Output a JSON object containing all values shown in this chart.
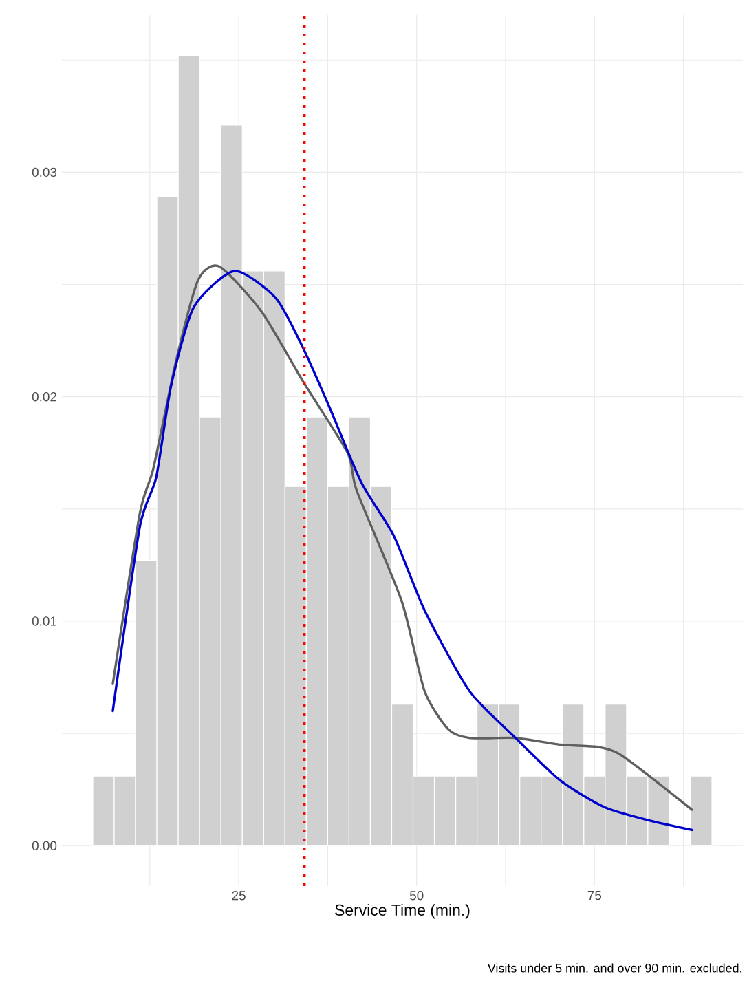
{
  "chart_data": {
    "type": "histogram",
    "xlabel": "Service Time (min.)",
    "annotations": [
      "Visits under 5 min. and over 90 min. excluded."
    ],
    "xlim": [
      0.15,
      95.85
    ],
    "ylim": [
      -0.0018,
      0.037
    ],
    "xticks": [
      {
        "value": 12.5,
        "label": null
      },
      25,
      {
        "value": 37.5,
        "label": null
      },
      50,
      {
        "value": 62.5,
        "label": null
      },
      75,
      {
        "value": 87.5,
        "label": null
      }
    ],
    "yticks": [
      {
        "value": 0,
        "label": "0.00"
      },
      {
        "value": 0.005,
        "label": null
      },
      {
        "value": 0.01,
        "label": "0.01"
      },
      {
        "value": 0.015,
        "label": null
      },
      {
        "value": 0.02,
        "label": "0.02"
      },
      {
        "value": 0.025,
        "label": null
      },
      {
        "value": 0.03,
        "label": "0.03"
      },
      {
        "value": 0.035,
        "label": null
      }
    ],
    "grid": true,
    "series": [
      {
        "color": "#d0d0d0",
        "bins": [
          4.5,
          7.5,
          10.5,
          13.5,
          16.5,
          19.5,
          22.5,
          25.5,
          28.5,
          31.5,
          34.5,
          37.5,
          40.5,
          43.5,
          46.5,
          49.5,
          52.5,
          55.5,
          58.5,
          61.5,
          64.5,
          67.5,
          70.5,
          73.5,
          76.5,
          79.5,
          82.5,
          85.5,
          88.5,
          91.5
        ],
        "values": [
          0.0031,
          0.0031,
          0.0127,
          0.0289,
          0.0352,
          0.0191,
          0.0321,
          0.0256,
          0.0256,
          0.016,
          0.0191,
          0.016,
          0.0191,
          0.016,
          0.0063,
          0.0031,
          0.0031,
          0.0031,
          0.0063,
          0.0063,
          0.0031,
          0.0031,
          0.0063,
          0.0031,
          0.0063,
          0.0031,
          0.0031,
          0,
          0.0031
        ]
      },
      {
        "type": "line",
        "color": "#5f5f5f",
        "x": [
          7.3,
          11.1,
          13.0,
          16.2,
          19.3,
          22.3,
          28.2,
          34.0,
          40.3,
          41.6,
          47.9,
          51.1,
          54.4,
          57.4,
          63.9,
          70.2,
          75.4,
          78.4,
          82.3,
          88.7
        ],
        "values": [
          0.0072,
          0.0148,
          0.0168,
          0.0216,
          0.0252,
          0.0258,
          0.0238,
          0.0207,
          0.0175,
          0.0158,
          0.0109,
          0.0069,
          0.0052,
          0.0048,
          0.0048,
          0.0045,
          0.0044,
          0.0041,
          0.0032,
          0.0016
        ]
      },
      {
        "type": "line",
        "color": "#0000cc",
        "x": [
          7.3,
          11.1,
          13.4,
          15.5,
          18.7,
          24.4,
          30.2,
          34.0,
          37.8,
          42.2,
          46.8,
          51.1,
          57.4,
          63.9,
          70.2,
          76.5,
          83.0,
          88.7
        ],
        "values": [
          0.006,
          0.0142,
          0.0164,
          0.0205,
          0.024,
          0.0256,
          0.0244,
          0.0222,
          0.0195,
          0.0162,
          0.0138,
          0.0105,
          0.0069,
          0.0048,
          0.0029,
          0.0017,
          0.0011,
          0.0007
        ]
      }
    ],
    "ref_lines": [
      {
        "axis": "x",
        "value": 34.2,
        "color": "#ff0000",
        "line_style": "dotted"
      }
    ]
  }
}
